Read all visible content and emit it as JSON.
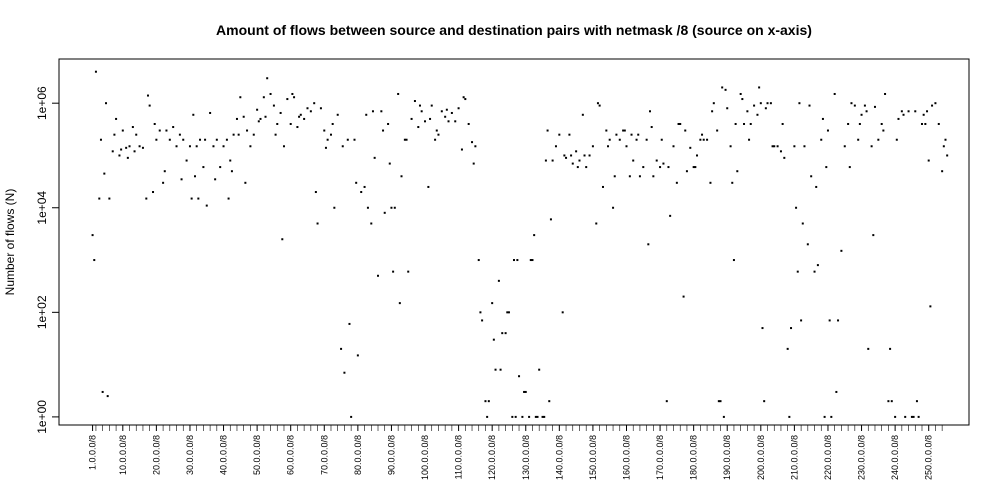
{
  "chart_data": {
    "type": "scatter",
    "title": "Amount of flows between source and destination pairs with netmask /8 (source on x-axis)",
    "xlabel": "",
    "ylabel": "Number of flows (N)",
    "log_y": true,
    "ylim": [
      0.7,
      7000000
    ],
    "y_ticks": [
      1,
      100,
      10000,
      1000000
    ],
    "y_tick_labels": [
      "1e+00",
      "1e+02",
      "1e+04",
      "1e+06"
    ],
    "x_ticks": [
      1,
      10,
      20,
      30,
      40,
      50,
      60,
      70,
      80,
      90,
      100,
      110,
      120,
      130,
      140,
      150,
      160,
      170,
      180,
      190,
      200,
      210,
      220,
      230,
      240,
      250
    ],
    "x_tick_labels": [
      "1.0.0.0/8",
      "10.0.0.0/8",
      "20.0.0.0/8",
      "30.0.0.0/8",
      "40.0.0.0/8",
      "50.0.0.0/8",
      "60.0.0.0/8",
      "70.0.0.0/8",
      "80.0.0.0/8",
      "90.0.0.0/8",
      "100.0.0.0/8",
      "110.0.0.0/8",
      "120.0.0.0/8",
      "130.0.0.0/8",
      "140.0.0.0/8",
      "150.0.0.0/8",
      "160.0.0.0/8",
      "170.0.0.0/8",
      "180.0.0.0/8",
      "190.0.0.0/8",
      "200.0.0.0/8",
      "210.0.0.0/8",
      "220.0.0.0/8",
      "230.0.0.0/8",
      "240.0.0.0/8",
      "250.0.0.0/8"
    ],
    "xlim": [
      -9,
      262
    ],
    "grid": false,
    "points": [
      [
        1,
        3000
      ],
      [
        1.5,
        1000
      ],
      [
        2,
        4000000
      ],
      [
        3,
        15000
      ],
      [
        3.5,
        200000
      ],
      [
        4,
        3
      ],
      [
        4.5,
        45000
      ],
      [
        5,
        1000000
      ],
      [
        5.5,
        2.5
      ],
      [
        6,
        15000
      ],
      [
        7,
        120000
      ],
      [
        7.5,
        250000
      ],
      [
        8,
        500000
      ],
      [
        9,
        100000
      ],
      [
        9.5,
        130000
      ],
      [
        10,
        300000
      ],
      [
        11,
        140000
      ],
      [
        11.5,
        90000
      ],
      [
        12,
        150000
      ],
      [
        13,
        350000
      ],
      [
        13.5,
        120000
      ],
      [
        14,
        250000
      ],
      [
        15,
        150000
      ],
      [
        16,
        140000
      ],
      [
        17,
        15000
      ],
      [
        17.5,
        1400000
      ],
      [
        18,
        900000
      ],
      [
        19,
        20000
      ],
      [
        19.5,
        400000
      ],
      [
        20,
        200000
      ],
      [
        21,
        300000
      ],
      [
        22,
        30000
      ],
      [
        22.5,
        50000
      ],
      [
        23,
        300000
      ],
      [
        24,
        200000
      ],
      [
        25,
        350000
      ],
      [
        26,
        150000
      ],
      [
        27,
        250000
      ],
      [
        27.5,
        35000
      ],
      [
        28,
        200000
      ],
      [
        29,
        80000
      ],
      [
        30,
        150000
      ],
      [
        30.5,
        15000
      ],
      [
        31,
        600000
      ],
      [
        31.5,
        40000
      ],
      [
        32,
        150000
      ],
      [
        32.5,
        15000
      ],
      [
        33,
        200000
      ],
      [
        34,
        60000
      ],
      [
        34.5,
        200000
      ],
      [
        35,
        11000
      ],
      [
        36,
        650000
      ],
      [
        37,
        150000
      ],
      [
        37.5,
        35000
      ],
      [
        38,
        200000
      ],
      [
        39,
        60000
      ],
      [
        40,
        150000
      ],
      [
        41,
        200000
      ],
      [
        41.5,
        15000
      ],
      [
        42,
        80000
      ],
      [
        42.5,
        50000
      ],
      [
        43,
        250000
      ],
      [
        44,
        500000
      ],
      [
        44.5,
        250000
      ],
      [
        45,
        1300000
      ],
      [
        46,
        550000
      ],
      [
        46.5,
        30000
      ],
      [
        47,
        300000
      ],
      [
        48,
        150000
      ],
      [
        49,
        250000
      ],
      [
        50,
        750000
      ],
      [
        50.5,
        450000
      ],
      [
        51,
        500000
      ],
      [
        52,
        1300000
      ],
      [
        52.5,
        550000
      ],
      [
        53,
        3000000
      ],
      [
        54,
        1500000
      ],
      [
        55,
        900000
      ],
      [
        55.5,
        250000
      ],
      [
        56,
        400000
      ],
      [
        57,
        650000
      ],
      [
        57.5,
        2500
      ],
      [
        58,
        150000
      ],
      [
        59,
        1200000
      ],
      [
        60,
        400000
      ],
      [
        60.5,
        1500000
      ],
      [
        61,
        1300000
      ],
      [
        62,
        350000
      ],
      [
        62.5,
        550000
      ],
      [
        63,
        600000
      ],
      [
        64,
        500000
      ],
      [
        65,
        800000
      ],
      [
        66,
        700000
      ],
      [
        67,
        1000000
      ],
      [
        67.5,
        20000
      ],
      [
        68,
        5000
      ],
      [
        69,
        800000
      ],
      [
        70,
        300000
      ],
      [
        70.5,
        140000
      ],
      [
        71,
        200000
      ],
      [
        72,
        250000
      ],
      [
        72.5,
        400000
      ],
      [
        73,
        10000
      ],
      [
        74,
        600000
      ],
      [
        75,
        20
      ],
      [
        75.5,
        150000
      ],
      [
        76,
        7
      ],
      [
        77,
        200000
      ],
      [
        77.5,
        60
      ],
      [
        78,
        1
      ],
      [
        79,
        200000
      ],
      [
        79.5,
        30000
      ],
      [
        80,
        15
      ],
      [
        81,
        20000
      ],
      [
        82,
        25000
      ],
      [
        82.5,
        600000
      ],
      [
        83,
        10000
      ],
      [
        84,
        5000
      ],
      [
        84.5,
        700000
      ],
      [
        85,
        90000
      ],
      [
        86,
        500
      ],
      [
        87,
        700000
      ],
      [
        87.5,
        300000
      ],
      [
        88,
        8000
      ],
      [
        89,
        400000
      ],
      [
        89.5,
        70000
      ],
      [
        90,
        10000
      ],
      [
        90.5,
        600
      ],
      [
        91,
        10000
      ],
      [
        92,
        1500000
      ],
      [
        92.5,
        150
      ],
      [
        93,
        40000
      ],
      [
        94,
        200000
      ],
      [
        94.5,
        200000
      ],
      [
        95,
        600
      ],
      [
        96,
        500000
      ],
      [
        97,
        1100000
      ],
      [
        98,
        350000
      ],
      [
        98.5,
        900000
      ],
      [
        99,
        700000
      ],
      [
        100,
        450000
      ],
      [
        101,
        25000
      ],
      [
        101.5,
        500000
      ],
      [
        102,
        900000
      ],
      [
        103,
        200000
      ],
      [
        103.5,
        300000
      ],
      [
        104,
        250000
      ],
      [
        105,
        700000
      ],
      [
        106,
        550000
      ],
      [
        106.5,
        750000
      ],
      [
        107,
        450000
      ],
      [
        108,
        650000
      ],
      [
        109,
        450000
      ],
      [
        110,
        800000
      ],
      [
        111,
        130000
      ],
      [
        111.5,
        1300000
      ],
      [
        112,
        1200000
      ],
      [
        113,
        400000
      ],
      [
        114,
        180000
      ],
      [
        114.5,
        70000
      ],
      [
        115,
        150000
      ],
      [
        116,
        1000
      ],
      [
        116.5,
        100
      ],
      [
        117,
        70
      ],
      [
        118,
        2
      ],
      [
        118.5,
        1
      ],
      [
        119,
        2
      ],
      [
        120,
        150
      ],
      [
        120.5,
        30
      ],
      [
        121,
        8
      ],
      [
        122,
        400
      ],
      [
        122.5,
        8
      ],
      [
        123,
        40
      ],
      [
        124,
        40
      ],
      [
        124.5,
        100
      ],
      [
        125,
        100
      ],
      [
        126,
        1
      ],
      [
        126.5,
        1000
      ],
      [
        127,
        1
      ],
      [
        127.5,
        1000
      ],
      [
        128,
        6
      ],
      [
        129,
        1
      ],
      [
        129.5,
        3
      ],
      [
        130,
        3
      ],
      [
        131,
        1
      ],
      [
        131.5,
        1000
      ],
      [
        132,
        1000
      ],
      [
        132.5,
        3000
      ],
      [
        133,
        1
      ],
      [
        133.5,
        1
      ],
      [
        134,
        8
      ],
      [
        135,
        1
      ],
      [
        135.5,
        1
      ],
      [
        136,
        80000
      ],
      [
        136.5,
        300000
      ],
      [
        137,
        2
      ],
      [
        137.5,
        6000
      ],
      [
        138,
        80000
      ],
      [
        139,
        150000
      ],
      [
        140,
        250000
      ],
      [
        141,
        100
      ],
      [
        141.5,
        100000
      ],
      [
        142,
        90000
      ],
      [
        143,
        250000
      ],
      [
        143.5,
        100000
      ],
      [
        144,
        70000
      ],
      [
        145,
        120000
      ],
      [
        145.5,
        60000
      ],
      [
        146,
        80000
      ],
      [
        147,
        600000
      ],
      [
        147.5,
        100000
      ],
      [
        148,
        60000
      ],
      [
        149,
        100000
      ],
      [
        150,
        150000
      ],
      [
        151,
        5000
      ],
      [
        151.5,
        1000000
      ],
      [
        152,
        900000
      ],
      [
        153,
        25000
      ],
      [
        154,
        300000
      ],
      [
        154.5,
        150000
      ],
      [
        155,
        200000
      ],
      [
        156,
        10000
      ],
      [
        156.5,
        40000
      ],
      [
        157,
        250000
      ],
      [
        158,
        200000
      ],
      [
        159,
        300000
      ],
      [
        159.5,
        300000
      ],
      [
        160,
        150000
      ],
      [
        161,
        40000
      ],
      [
        161.5,
        250000
      ],
      [
        162,
        80000
      ],
      [
        163,
        200000
      ],
      [
        163.5,
        250000
      ],
      [
        164,
        40000
      ],
      [
        165,
        60000
      ],
      [
        166,
        200000
      ],
      [
        166.5,
        2000
      ],
      [
        167,
        700000
      ],
      [
        167.5,
        350000
      ],
      [
        168,
        40000
      ],
      [
        169,
        80000
      ],
      [
        170,
        60000
      ],
      [
        170.5,
        200000
      ],
      [
        171,
        70000
      ],
      [
        172,
        2
      ],
      [
        172.5,
        60000
      ],
      [
        173,
        7000
      ],
      [
        174,
        150000
      ],
      [
        175,
        30000
      ],
      [
        175.5,
        400000
      ],
      [
        176,
        400000
      ],
      [
        177,
        200
      ],
      [
        177.5,
        300000
      ],
      [
        178,
        50000
      ],
      [
        179,
        140000
      ],
      [
        180,
        60000
      ],
      [
        180.5,
        60000
      ],
      [
        181,
        100000
      ],
      [
        182,
        200000
      ],
      [
        182.5,
        250000
      ],
      [
        183,
        200000
      ],
      [
        184,
        200000
      ],
      [
        185,
        30000
      ],
      [
        185.5,
        700000
      ],
      [
        186,
        1000000
      ],
      [
        187,
        300000
      ],
      [
        187.5,
        2
      ],
      [
        188,
        2
      ],
      [
        188.5,
        2000000
      ],
      [
        189,
        1
      ],
      [
        189.5,
        1800000
      ],
      [
        190,
        800000
      ],
      [
        191,
        150000
      ],
      [
        191.5,
        30000
      ],
      [
        192,
        1000
      ],
      [
        192.5,
        400000
      ],
      [
        193,
        50000
      ],
      [
        194,
        1500000
      ],
      [
        194.5,
        1200000
      ],
      [
        195,
        400000
      ],
      [
        196,
        700000
      ],
      [
        196.5,
        200000
      ],
      [
        197,
        400000
      ],
      [
        198,
        900000
      ],
      [
        199,
        600000
      ],
      [
        199.5,
        2000000
      ],
      [
        200,
        1000000
      ],
      [
        200.5,
        50
      ],
      [
        201,
        2
      ],
      [
        201.5,
        800000
      ],
      [
        202,
        1000000
      ],
      [
        203,
        1000000
      ],
      [
        203.5,
        150000
      ],
      [
        204,
        150000
      ],
      [
        205,
        150000
      ],
      [
        206,
        120000
      ],
      [
        206.5,
        400000
      ],
      [
        207,
        90000
      ],
      [
        208,
        20
      ],
      [
        208.5,
        1
      ],
      [
        209,
        50
      ],
      [
        210,
        150000
      ],
      [
        210.5,
        10000
      ],
      [
        211,
        600
      ],
      [
        211.5,
        1000000
      ],
      [
        212,
        70
      ],
      [
        212.5,
        5000
      ],
      [
        213,
        150000
      ],
      [
        214,
        2000
      ],
      [
        214.5,
        900000
      ],
      [
        215,
        40000
      ],
      [
        216,
        600
      ],
      [
        216.5,
        25000
      ],
      [
        217,
        800
      ],
      [
        218,
        200000
      ],
      [
        218.5,
        500000
      ],
      [
        219,
        1
      ],
      [
        219.5,
        60000
      ],
      [
        220,
        300000
      ],
      [
        220.5,
        70
      ],
      [
        221,
        1
      ],
      [
        222,
        1500000
      ],
      [
        222.5,
        3
      ],
      [
        223,
        70
      ],
      [
        224,
        1500
      ],
      [
        225,
        150000
      ],
      [
        226,
        400000
      ],
      [
        226.5,
        60000
      ],
      [
        227,
        1000000
      ],
      [
        228,
        900000
      ],
      [
        229,
        200000
      ],
      [
        229.5,
        400000
      ],
      [
        230,
        600000
      ],
      [
        231,
        900000
      ],
      [
        231.5,
        700000
      ],
      [
        232,
        20
      ],
      [
        233,
        150000
      ],
      [
        233.5,
        3000
      ],
      [
        234,
        850000
      ],
      [
        235,
        200000
      ],
      [
        236,
        400000
      ],
      [
        236.5,
        300000
      ],
      [
        237,
        1500000
      ],
      [
        238,
        2
      ],
      [
        238.5,
        20
      ],
      [
        239,
        2
      ],
      [
        240,
        1
      ],
      [
        240.5,
        200000
      ],
      [
        241,
        500000
      ],
      [
        242,
        700000
      ],
      [
        242.5,
        600000
      ],
      [
        243,
        1
      ],
      [
        244,
        700000
      ],
      [
        245,
        1
      ],
      [
        245.5,
        1
      ],
      [
        246,
        700000
      ],
      [
        246.5,
        2
      ],
      [
        247,
        1
      ],
      [
        248,
        400000
      ],
      [
        248.5,
        600000
      ],
      [
        249,
        400000
      ],
      [
        249.5,
        700000
      ],
      [
        250,
        80000
      ],
      [
        250.5,
        130
      ],
      [
        251,
        900000
      ],
      [
        252,
        1000000
      ],
      [
        253,
        400000
      ],
      [
        254,
        50000
      ],
      [
        254.5,
        150000
      ],
      [
        255,
        200000
      ],
      [
        255.5,
        100000
      ]
    ]
  }
}
